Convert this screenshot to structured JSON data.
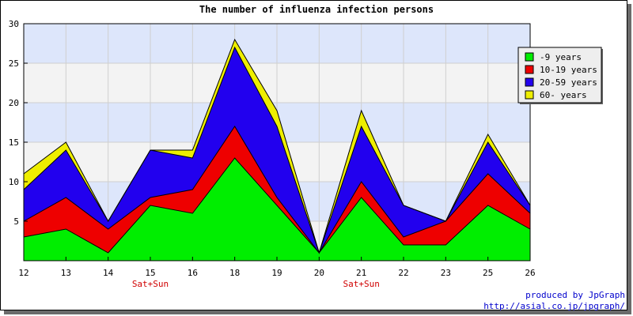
{
  "chart_data": {
    "type": "area",
    "stacked": true,
    "title": "The number of influenza infection persons",
    "xlabel": "",
    "ylabel": "",
    "categories": [
      "12",
      "13",
      "14",
      "15",
      "16",
      "18",
      "19",
      "20",
      "21",
      "22",
      "23",
      "25",
      "26"
    ],
    "category_notes": [
      {
        "category": "15",
        "text": "Sat+Sun"
      },
      {
        "category": "21",
        "text": "Sat+Sun"
      }
    ],
    "ylim": [
      0,
      30
    ],
    "yticks": [
      5,
      10,
      15,
      20,
      25,
      30
    ],
    "grid": true,
    "legend_position": "top-right",
    "series": [
      {
        "name": "-9 years",
        "color": "#00ee00",
        "values": [
          3,
          4,
          1,
          7,
          6,
          13,
          7,
          1,
          8,
          2,
          2,
          7,
          4
        ]
      },
      {
        "name": "10-19 years",
        "color": "#ee0000",
        "values": [
          2,
          4,
          3,
          1,
          3,
          4,
          1,
          0,
          2,
          1,
          3,
          4,
          2
        ]
      },
      {
        "name": "20-59 years",
        "color": "#2200ee",
        "values": [
          4,
          6,
          1,
          6,
          4,
          10,
          9,
          0,
          7,
          4,
          0,
          4,
          1
        ]
      },
      {
        "name": "60- years",
        "color": "#eeee00",
        "values": [
          2,
          1,
          0,
          0,
          1,
          1,
          2,
          0,
          2,
          0,
          0,
          1,
          0
        ]
      }
    ]
  },
  "credits": {
    "line1": "produced by JpGraph",
    "line2": "http://asial.co.jp/jpgraph/"
  }
}
